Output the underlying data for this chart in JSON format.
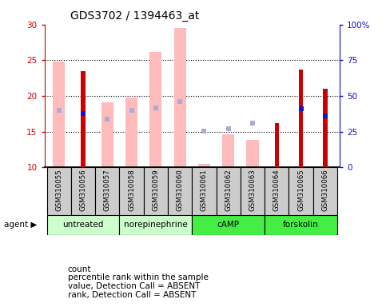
{
  "title": "GDS3702 / 1394463_at",
  "samples": [
    "GSM310055",
    "GSM310056",
    "GSM310057",
    "GSM310058",
    "GSM310059",
    "GSM310060",
    "GSM310061",
    "GSM310062",
    "GSM310063",
    "GSM310064",
    "GSM310065",
    "GSM310066"
  ],
  "agents": [
    {
      "label": "untreated",
      "indices": [
        0,
        1,
        2
      ],
      "color": "#ccffcc"
    },
    {
      "label": "norepinephrine",
      "indices": [
        3,
        4,
        5
      ],
      "color": "#ccffcc"
    },
    {
      "label": "cAMP",
      "indices": [
        6,
        7,
        8
      ],
      "color": "#44ee44"
    },
    {
      "label": "forskolin",
      "indices": [
        9,
        10,
        11
      ],
      "color": "#44ee44"
    }
  ],
  "count_values": [
    null,
    23.5,
    null,
    null,
    null,
    null,
    null,
    null,
    null,
    16.2,
    23.7,
    21.0
  ],
  "percentile_values": [
    null,
    17.5,
    null,
    null,
    null,
    null,
    null,
    null,
    null,
    null,
    18.2,
    17.2
  ],
  "absent_value_bars": [
    24.8,
    null,
    19.1,
    19.8,
    26.2,
    29.5,
    10.5,
    14.6,
    13.8,
    null,
    null,
    null
  ],
  "absent_rank_pts": [
    18.0,
    null,
    16.8,
    18.0,
    18.3,
    19.2,
    15.1,
    15.4,
    16.2,
    null,
    null,
    null
  ],
  "ylim": [
    10,
    30
  ],
  "y2lim": [
    0,
    100
  ],
  "yticks": [
    10,
    15,
    20,
    25,
    30
  ],
  "y2ticks": [
    0,
    25,
    50,
    75,
    100
  ],
  "y2labels": [
    "0",
    "25",
    "50",
    "75",
    "100%"
  ],
  "color_count": "#cc0000",
  "color_percentile": "#1111cc",
  "color_absent_value": "#ffbbbb",
  "color_absent_rank": "#aaaadd",
  "bar_width": 0.5,
  "count_bar_width": 0.18,
  "legend_items": [
    {
      "color": "#cc0000",
      "label": "count"
    },
    {
      "color": "#1111cc",
      "label": "percentile rank within the sample"
    },
    {
      "color": "#ffbbbb",
      "label": "value, Detection Call = ABSENT"
    },
    {
      "color": "#aaaadd",
      "label": "rank, Detection Call = ABSENT"
    }
  ]
}
